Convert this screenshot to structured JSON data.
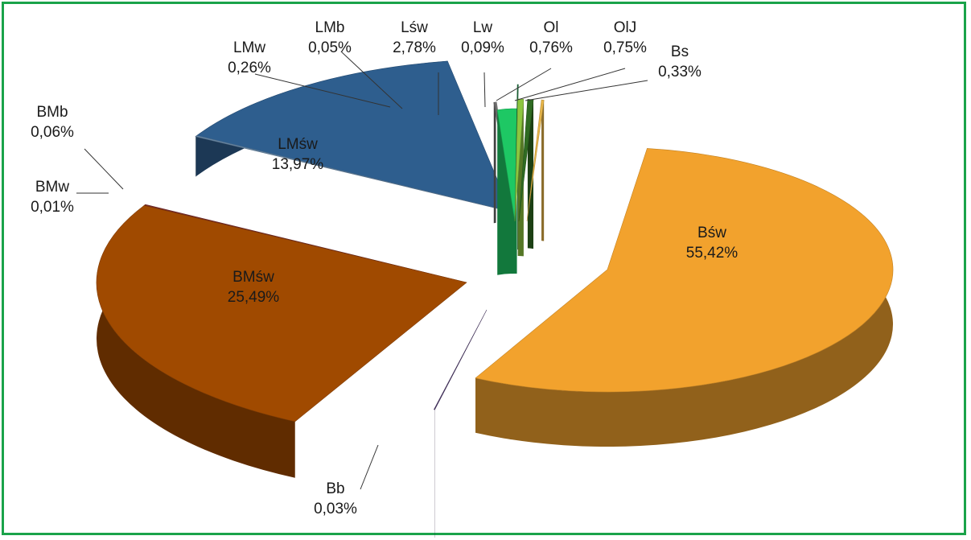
{
  "chart_data": {
    "type": "pie",
    "style": "3d-exploded",
    "title": "",
    "legend": "none",
    "slices": [
      {
        "name": "Bśw",
        "value": 55.42,
        "label": "55,42%",
        "color": "#f2a22d"
      },
      {
        "name": "BMśw",
        "value": 25.49,
        "label": "25,49%",
        "color": "#a04a00"
      },
      {
        "name": "LMśw",
        "value": 13.97,
        "label": "13,97%",
        "color": "#2e5e8e"
      },
      {
        "name": "Lśw",
        "value": 2.78,
        "label": "2,78%",
        "color": "#1ec864"
      },
      {
        "name": "Ol",
        "value": 0.76,
        "label": "0,76%",
        "color": "#8dc63f"
      },
      {
        "name": "OlJ",
        "value": 0.75,
        "label": "0,75%",
        "color": "#2f6b22"
      },
      {
        "name": "Bs",
        "value": 0.33,
        "label": "0,33%",
        "color": "#e8b64a"
      },
      {
        "name": "LMw",
        "value": 0.26,
        "label": "0,26%",
        "color": "#6b6b6b"
      },
      {
        "name": "Lw",
        "value": 0.09,
        "label": "0,09%",
        "color": "#1a6a3a"
      },
      {
        "name": "BMb",
        "value": 0.06,
        "label": "0,06%",
        "color": "#6a8aa8"
      },
      {
        "name": "LMb",
        "value": 0.05,
        "label": "0,05%",
        "color": "#8e8e8e"
      },
      {
        "name": "Bb",
        "value": 0.03,
        "label": "0,03%",
        "color": "#4e3a6a"
      },
      {
        "name": "BMw",
        "value": 0.01,
        "label": "0,01%",
        "color": "#7a2a2a"
      }
    ]
  }
}
